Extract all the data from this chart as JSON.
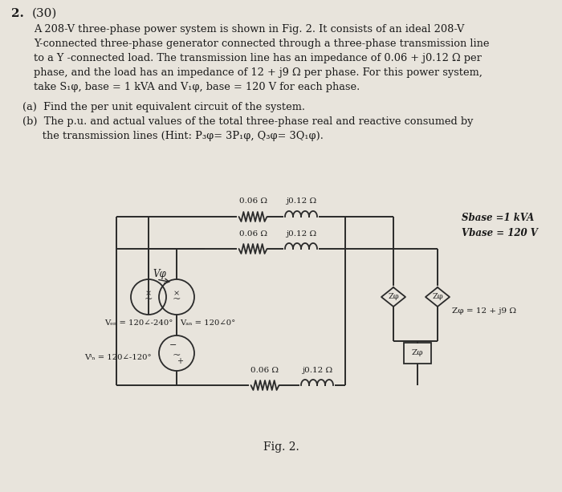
{
  "bg_color": "#e8e4dc",
  "text_color": "#1a1a1a",
  "line_color": "#2a2a2a",
  "title_num": "2.",
  "title_pts": "(30)",
  "line1": "A 208-V three-phase power system is shown in Fig. 2. It consists of an ideal 208-V",
  "line2": "Y-connected three-phase generator connected through a three-phase transmission line",
  "line3": "to a Y -connected load. The transmission line has an impedance of 0.06 + j0.12 Ω per",
  "line4": "phase, and the load has an impedance of 12 + j9 Ω per phase. For this power system,",
  "line5": "take S₁φ, base = 1 kVA and V₁φ, base = 120 V for each phase.",
  "part_a": "(a)  Find the per unit equivalent circuit of the system.",
  "part_b1": "(b)  The p.u. and actual values of the total three-phase real and reactive consumed by",
  "part_b2": "      the transmission lines (Hint: P₃φ= 3P₁φ, Q₃φ= 3Q₁φ).",
  "fig_label": "Fig. 2.",
  "sbase_label": "Sbase =1 kVA",
  "vbase_label": "Vbase = 120 V",
  "zload_label": "Zφ = 12 + j9 Ω"
}
